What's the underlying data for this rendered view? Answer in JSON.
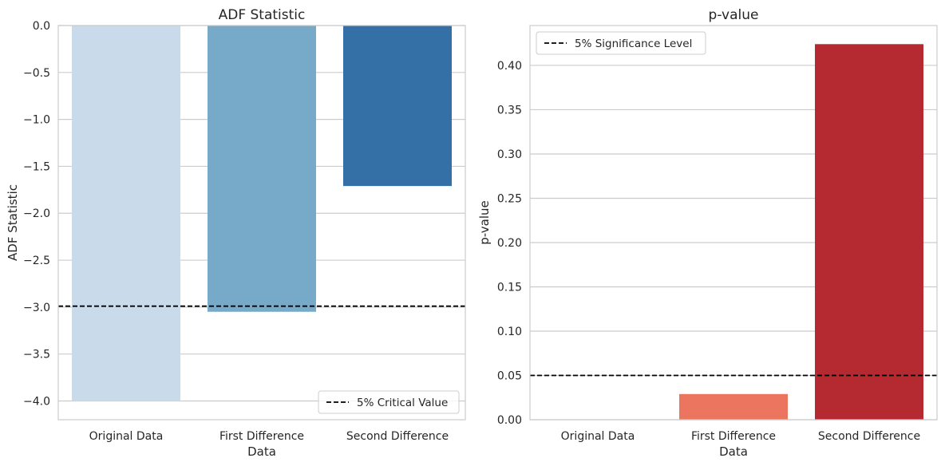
{
  "chart_data": [
    {
      "type": "bar",
      "title": "ADF Statistic",
      "xlabel": "Data",
      "ylabel": "ADF Statistic",
      "categories": [
        "Original Data",
        "First Difference",
        "Second Difference"
      ],
      "values": [
        -4.0,
        -3.05,
        -1.71
      ],
      "colors": [
        "#c9daea",
        "#77a9c9",
        "#3470a5"
      ],
      "ylim": [
        -4.2,
        0.0
      ],
      "yticks": [
        0.0,
        -0.5,
        -1.0,
        -1.5,
        -2.0,
        -2.5,
        -3.0,
        -3.5,
        -4.0
      ],
      "ytick_labels": [
        "0.0",
        "−0.5",
        "−1.0",
        "−1.5",
        "−2.0",
        "−2.5",
        "−3.0",
        "−3.5",
        "−4.0"
      ],
      "grid": true,
      "reference_line": {
        "value": -2.99,
        "style": "dashed",
        "color": "#000000",
        "label": "5% Critical Value"
      },
      "legend_position": "lower-right"
    },
    {
      "type": "bar",
      "title": "p-value",
      "xlabel": "Data",
      "ylabel": "p-value",
      "categories": [
        "Original Data",
        "First Difference",
        "Second Difference"
      ],
      "values": [
        0.0003,
        0.029,
        0.424
      ],
      "colors": [
        "#fcbba1",
        "#ec7560",
        "#b42a30"
      ],
      "ylim": [
        0.0,
        0.445
      ],
      "yticks": [
        0.0,
        0.05,
        0.1,
        0.15,
        0.2,
        0.25,
        0.3,
        0.35,
        0.4
      ],
      "ytick_labels": [
        "0.00",
        "0.05",
        "0.10",
        "0.15",
        "0.20",
        "0.25",
        "0.30",
        "0.35",
        "0.40"
      ],
      "grid": true,
      "reference_line": {
        "value": 0.05,
        "style": "dashed",
        "color": "#000000",
        "label": "5% Significance Level"
      },
      "legend_position": "upper-left"
    }
  ]
}
